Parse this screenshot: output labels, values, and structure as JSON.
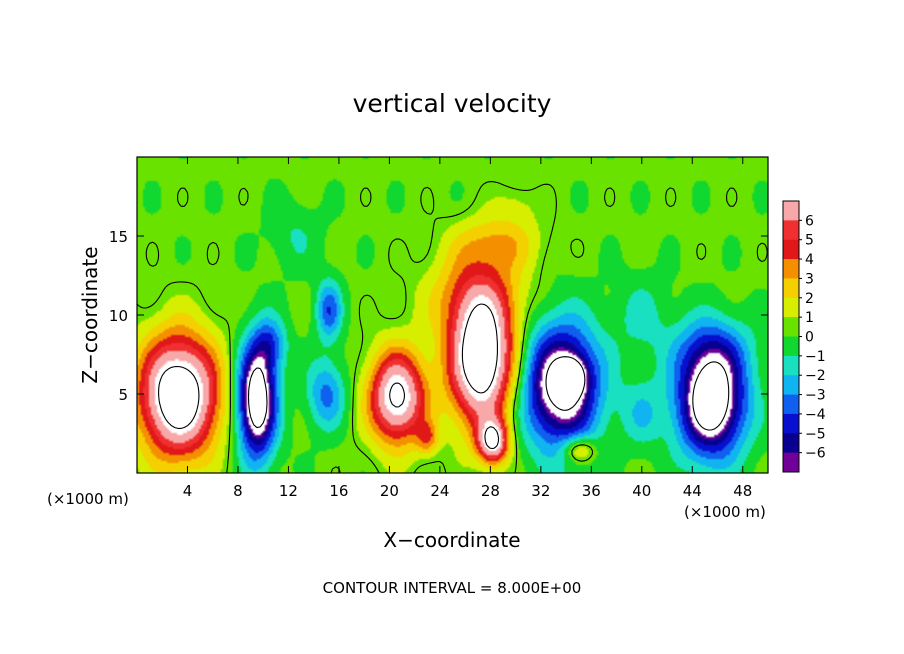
{
  "chart_data": {
    "type": "heatmap",
    "title": "vertical velocity",
    "xlabel": "X−coordinate",
    "ylabel": "Z−coordinate",
    "x_unit": "(×1000 m)",
    "xlim": [
      0,
      50
    ],
    "ylim": [
      0,
      20
    ],
    "x_ticks": [
      "4",
      "8",
      "12",
      "16",
      "20",
      "24",
      "28",
      "32",
      "36",
      "40",
      "44",
      "48"
    ],
    "y_ticks": [
      "5",
      "10",
      "15"
    ],
    "footer": "CONTOUR INTERVAL = 8.000E+00",
    "colorbar": {
      "labels": [
        "6",
        "5",
        "4",
        "3",
        "2",
        "1",
        "0",
        "−1",
        "−2",
        "−3",
        "−4",
        "−5",
        "−6"
      ],
      "colors": [
        "#f8a8a8",
        "#f03030",
        "#e01818",
        "#f49000",
        "#f4d000",
        "#d8ee00",
        "#6ae200",
        "#10d830",
        "#18e0c0",
        "#10b4f0",
        "#1060f0",
        "#0810d0",
        "#0a0090",
        "#700098"
      ]
    },
    "field": {
      "background": -0.3,
      "blobs": [
        {
          "x": 3.3,
          "z": 4.9,
          "rx": 3.6,
          "rz": 4.4,
          "amp": 11
        },
        {
          "x": 9.5,
          "z": 4.6,
          "rx": 1.8,
          "rz": 4.2,
          "amp": -10
        },
        {
          "x": 10.6,
          "z": 8.2,
          "rx": 1.5,
          "rz": 2.0,
          "amp": -3
        },
        {
          "x": 15.2,
          "z": 10.3,
          "rx": 1.2,
          "rz": 2.2,
          "amp": -4
        },
        {
          "x": 15,
          "z": 5,
          "rx": 1.8,
          "rz": 2.6,
          "amp": -3.5
        },
        {
          "x": 20.6,
          "z": 4.8,
          "rx": 2.6,
          "rz": 3.4,
          "amp": 9
        },
        {
          "x": 23,
          "z": 2.2,
          "rx": 1.0,
          "rz": 1.2,
          "amp": 3
        },
        {
          "x": 27.3,
          "z": 7.2,
          "rx": 3.0,
          "rz": 4.8,
          "amp": 11
        },
        {
          "x": 28.2,
          "z": 2.0,
          "rx": 1.4,
          "rz": 1.6,
          "amp": 8
        },
        {
          "x": 26.8,
          "z": 11.3,
          "rx": 4.5,
          "rz": 3.2,
          "amp": 3
        },
        {
          "x": 28.5,
          "z": 14.6,
          "rx": 4.0,
          "rz": 2.0,
          "amp": 2.5
        },
        {
          "x": 33.6,
          "z": 5.5,
          "rx": 3.6,
          "rz": 4.6,
          "amp": -9
        },
        {
          "x": 34.6,
          "z": 6.1,
          "rx": 1.2,
          "rz": 1.3,
          "amp": -4
        },
        {
          "x": 35,
          "z": 1.5,
          "rx": 1.6,
          "rz": 1.0,
          "amp": 3.5
        },
        {
          "x": 40,
          "z": 3.8,
          "rx": 2.0,
          "rz": 2.6,
          "amp": -2
        },
        {
          "x": 45.5,
          "z": 4.6,
          "rx": 3.2,
          "rz": 4.2,
          "amp": -10
        },
        {
          "x": 45.5,
          "z": 8,
          "rx": 4.0,
          "rz": 2.4,
          "amp": -2
        },
        {
          "x": 12.5,
          "z": 15,
          "rx": 2.5,
          "rz": 2.5,
          "amp": -1.2
        },
        {
          "x": 40,
          "z": 10,
          "rx": 2.5,
          "rz": 3.0,
          "amp": -1.5
        },
        {
          "x": 30,
          "z": 17,
          "rx": 2.0,
          "rz": 1.5,
          "amp": 1.0
        }
      ]
    },
    "contour_threshold": 8
  }
}
